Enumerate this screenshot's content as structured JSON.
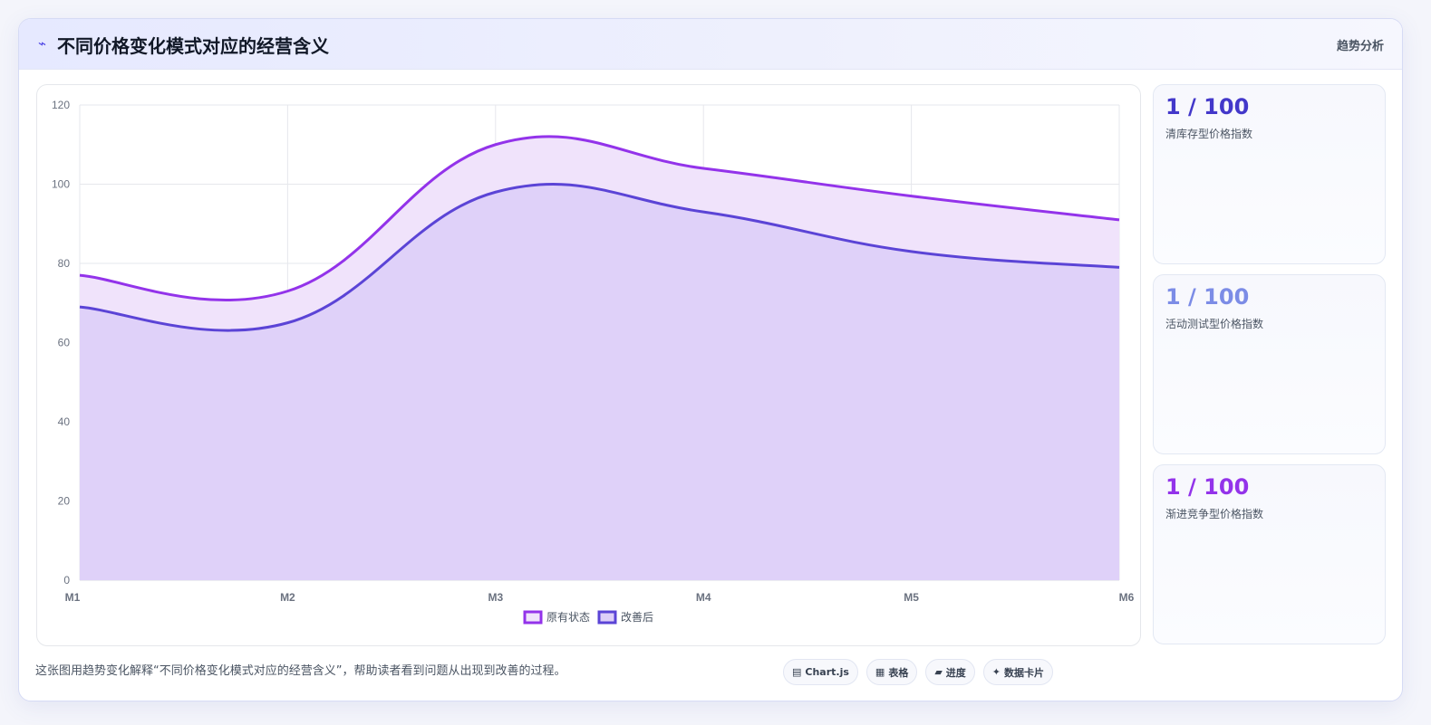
{
  "header": {
    "icon": "trend-line-icon",
    "title": "不同价格变化模式对应的经营含义",
    "tag": "趋势分析"
  },
  "stats": [
    {
      "value": "1 / 100",
      "label": "清库存型价格指数",
      "color": "#4338ca"
    },
    {
      "value": "1 / 100",
      "label": "活动测试型价格指数",
      "color": "#7c8ce6"
    },
    {
      "value": "1 / 100",
      "label": "渐进竞争型价格指数",
      "color": "#9333ea"
    }
  ],
  "caption": "这张图用趋势变化解释“不同价格变化模式对应的经营含义”，帮助读者看到问题从出现到改善的过程。",
  "chips": [
    {
      "icon": "chart-icon",
      "glyph": "▤",
      "label": "Chart.js"
    },
    {
      "icon": "table-icon",
      "glyph": "▦",
      "label": "表格"
    },
    {
      "icon": "progress-icon",
      "glyph": "▰",
      "label": "进度"
    },
    {
      "icon": "sparkle-icon",
      "glyph": "✦",
      "label": "数据卡片"
    }
  ],
  "chart_data": {
    "type": "area",
    "categories": [
      "M1",
      "M2",
      "M3",
      "M4",
      "M5",
      "M6"
    ],
    "series": [
      {
        "name": "原有状态",
        "values": [
          77,
          73,
          110,
          104,
          97,
          91
        ],
        "color": "#9333ea",
        "fill": "#f0e3fb"
      },
      {
        "name": "改善后",
        "values": [
          69,
          65,
          98,
          93,
          83,
          79
        ],
        "color": "#5b44d6",
        "fill": "#ddcef8"
      }
    ],
    "ylim": [
      0,
      120
    ],
    "yticks": [
      0,
      20,
      40,
      60,
      80,
      100,
      120
    ],
    "grid": true,
    "legend": "bottom"
  }
}
